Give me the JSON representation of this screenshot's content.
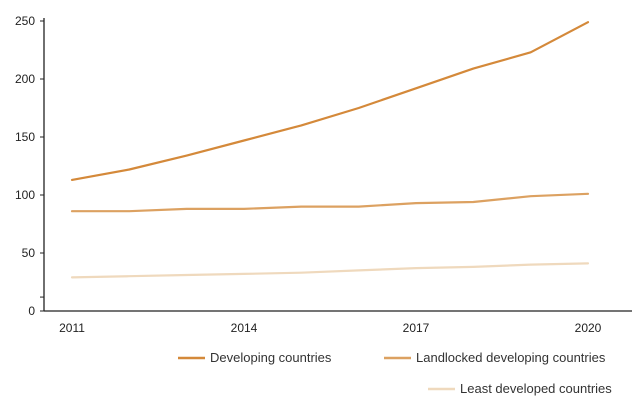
{
  "chart_data": {
    "type": "line",
    "title": "",
    "xlabel": "",
    "ylabel": "",
    "x": [
      2011,
      2012,
      2013,
      2014,
      2015,
      2016,
      2017,
      2018,
      2019,
      2020
    ],
    "x_ticks": [
      "2011",
      "2014",
      "2017",
      "2020"
    ],
    "y_ticks": [
      "0",
      "50",
      "100",
      "150",
      "200",
      "250"
    ],
    "ylim": [
      0,
      250
    ],
    "grid": false,
    "legend_position": "bottom-right",
    "series": [
      {
        "name": "Developing countries",
        "color": "#d4893a",
        "values": [
          113,
          122,
          134,
          147,
          160,
          175,
          192,
          209,
          223,
          249
        ]
      },
      {
        "name": "Landlocked developing countries",
        "color": "#dca161",
        "values": [
          86,
          86,
          88,
          88,
          90,
          90,
          93,
          94,
          99,
          101
        ]
      },
      {
        "name": "Least developed countries",
        "color": "#efd9bd",
        "values": [
          29,
          30,
          31,
          32,
          33,
          35,
          37,
          38,
          40,
          41
        ]
      }
    ]
  }
}
